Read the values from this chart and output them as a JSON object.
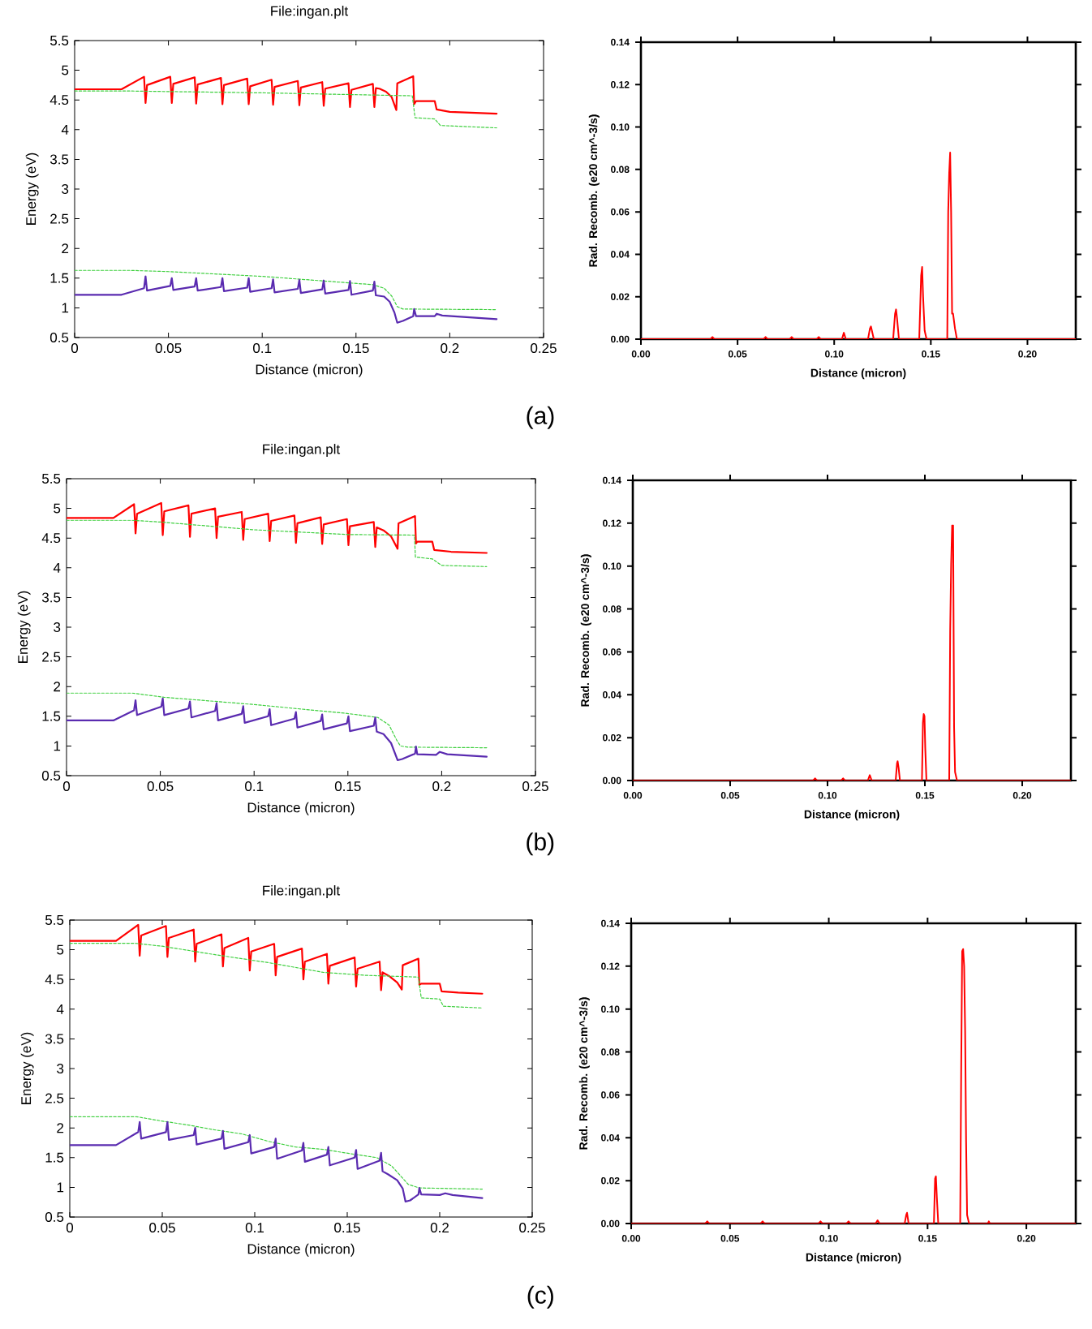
{
  "chart_data": [
    {
      "type": "line",
      "title": "File:ingan.plt",
      "xlabel": "Distance (micron)",
      "ylabel": "Energy (eV)",
      "xlim": [
        0,
        0.25
      ],
      "ylim": [
        0.5,
        5.5
      ],
      "xticks": [
        0,
        0.05,
        0.1,
        0.15,
        0.2,
        0.25
      ],
      "yticks": [
        0.5,
        1,
        1.5,
        2,
        2.5,
        3,
        3.5,
        4,
        4.5,
        5,
        5.5
      ],
      "annotations": [
        "(a)"
      ],
      "series": [
        {
          "color": "#ff0000",
          "x": [
            0,
            0.025,
            0.037,
            0.0378,
            0.0386,
            0.051,
            0.0518,
            0.0526,
            0.064,
            0.0648,
            0.0656,
            0.078,
            0.0788,
            0.0796,
            0.092,
            0.0928,
            0.0936,
            0.105,
            0.1058,
            0.1066,
            0.119,
            0.1198,
            0.1206,
            0.132,
            0.1328,
            0.1336,
            0.146,
            0.1468,
            0.1476,
            0.159,
            0.1598,
            0.1606,
            0.1625,
            0.166,
            0.169,
            0.1715,
            0.172,
            0.1805,
            0.181,
            0.182,
            0.192,
            0.193,
            0.2,
            0.225
          ],
          "values": [
            4.68,
            4.68,
            4.89,
            4.45,
            4.75,
            4.89,
            4.45,
            4.77,
            4.88,
            4.44,
            4.76,
            4.87,
            4.43,
            4.75,
            4.86,
            4.43,
            4.73,
            4.84,
            4.42,
            4.72,
            4.82,
            4.41,
            4.71,
            4.8,
            4.4,
            4.69,
            4.78,
            4.38,
            4.67,
            4.77,
            4.38,
            4.7,
            4.69,
            4.64,
            4.55,
            4.33,
            4.78,
            4.9,
            4.43,
            4.48,
            4.48,
            4.34,
            4.3,
            4.27
          ]
        },
        {
          "color": "#40d040",
          "line_style": "dashed",
          "x": [
            0,
            0.03,
            0.1,
            0.18,
            0.1815,
            0.192,
            0.195,
            0.225
          ],
          "values": [
            4.65,
            4.65,
            4.62,
            4.57,
            4.2,
            4.18,
            4.07,
            4.03
          ]
        },
        {
          "color": "#40d040",
          "line_style": "dashed",
          "x": [
            0,
            0.03,
            0.05,
            0.1,
            0.159,
            0.165,
            0.169,
            0.172,
            0.175,
            0.225
          ],
          "values": [
            1.63,
            1.63,
            1.61,
            1.53,
            1.39,
            1.33,
            1.2,
            1.02,
            0.98,
            0.97
          ]
        },
        {
          "color": "#5a2bb0",
          "x": [
            0,
            0.025,
            0.037,
            0.0378,
            0.0386,
            0.051,
            0.0518,
            0.0526,
            0.064,
            0.0648,
            0.0656,
            0.078,
            0.0788,
            0.0796,
            0.092,
            0.0928,
            0.0936,
            0.105,
            0.1058,
            0.1066,
            0.119,
            0.1198,
            0.1206,
            0.132,
            0.1328,
            0.1336,
            0.146,
            0.1468,
            0.1476,
            0.159,
            0.1598,
            0.1606,
            0.165,
            0.168,
            0.1705,
            0.172,
            0.175,
            0.1805,
            0.181,
            0.182,
            0.192,
            0.193,
            0.196,
            0.225
          ],
          "values": [
            1.22,
            1.22,
            1.33,
            1.53,
            1.29,
            1.37,
            1.5,
            1.3,
            1.36,
            1.5,
            1.29,
            1.35,
            1.5,
            1.28,
            1.34,
            1.5,
            1.27,
            1.33,
            1.48,
            1.26,
            1.32,
            1.47,
            1.25,
            1.31,
            1.46,
            1.24,
            1.3,
            1.45,
            1.22,
            1.29,
            1.44,
            1.21,
            1.19,
            1.1,
            0.92,
            0.75,
            0.78,
            0.86,
            0.98,
            0.86,
            0.86,
            0.9,
            0.87,
            0.81
          ]
        }
      ]
    },
    {
      "type": "line",
      "xlabel": "Distance (micron)",
      "ylabel": "Rad. Recomb. (e20 cm^-3/s)",
      "xlim": [
        0,
        0.225
      ],
      "ylim": [
        0,
        0.14
      ],
      "xticks": [
        {
          "value": 0,
          "label": "0.00"
        },
        {
          "value": 0.05,
          "label": "0.05"
        },
        {
          "value": 0.1,
          "label": "0.10"
        },
        {
          "value": 0.15,
          "label": "0.15"
        },
        {
          "value": 0.2,
          "label": "0.20"
        }
      ],
      "yticks": [
        {
          "value": 0,
          "label": "0.00"
        },
        {
          "value": 0.02,
          "label": "0.02"
        },
        {
          "value": 0.04,
          "label": "0.04"
        },
        {
          "value": 0.06,
          "label": "0.06"
        },
        {
          "value": 0.08,
          "label": "0.08"
        },
        {
          "value": 0.1,
          "label": "0.10"
        },
        {
          "value": 0.12,
          "label": "0.12"
        },
        {
          "value": 0.14,
          "label": "0.14"
        }
      ],
      "series": [
        {
          "color": "#ff0000",
          "x": [
            0,
            0.036,
            0.037,
            0.038,
            0.0635,
            0.0645,
            0.0655,
            0.077,
            0.078,
            0.079,
            0.091,
            0.092,
            0.093,
            0.104,
            0.105,
            0.106,
            0.1175,
            0.1185,
            0.119,
            0.1195,
            0.1205,
            0.1305,
            0.1315,
            0.132,
            0.1325,
            0.1335,
            0.144,
            0.145,
            0.1455,
            0.146,
            0.1468,
            0.1478,
            0.1585,
            0.159,
            0.1595,
            0.16,
            0.1605,
            0.161,
            0.1615,
            0.1625,
            0.1635,
            0.225
          ],
          "values": [
            0,
            0,
            0.001,
            0,
            0,
            0.001,
            0,
            0,
            0.001,
            0,
            0,
            0.001,
            0,
            0,
            0.003,
            0,
            0,
            0.005,
            0.006,
            0.004,
            0,
            0,
            0.012,
            0.014,
            0.01,
            0,
            0,
            0.03,
            0.034,
            0.02,
            0.004,
            0,
            0,
            0.06,
            0.078,
            0.088,
            0.06,
            0.012,
            0.012,
            0.005,
            0,
            0
          ]
        }
      ]
    },
    {
      "type": "line",
      "title": "File:ingan.plt",
      "xlabel": "Distance (micron)",
      "ylabel": "Energy (eV)",
      "xlim": [
        0,
        0.25
      ],
      "ylim": [
        0.5,
        5.5
      ],
      "xticks": [
        0,
        0.05,
        0.1,
        0.15,
        0.2,
        0.25
      ],
      "yticks": [
        0.5,
        1,
        1.5,
        2,
        2.5,
        3,
        3.5,
        4,
        4.5,
        5,
        5.5
      ],
      "annotations": [
        "(b)"
      ],
      "series": [
        {
          "color": "#ff0000",
          "x": [
            0,
            0.025,
            0.036,
            0.0368,
            0.0376,
            0.0505,
            0.0513,
            0.0521,
            0.065,
            0.0658,
            0.0666,
            0.0792,
            0.08,
            0.0808,
            0.0934,
            0.0942,
            0.095,
            0.1075,
            0.1083,
            0.1091,
            0.1215,
            0.1223,
            0.1231,
            0.1355,
            0.1363,
            0.1371,
            0.1495,
            0.1503,
            0.1511,
            0.1638,
            0.1646,
            0.1654,
            0.169,
            0.173,
            0.1765,
            0.177,
            0.1858,
            0.1863,
            0.187,
            0.195,
            0.196,
            0.205,
            0.224
          ],
          "values": [
            4.84,
            4.84,
            5.07,
            4.58,
            4.91,
            5.09,
            4.55,
            4.95,
            5.05,
            4.52,
            4.91,
            5.0,
            4.5,
            4.86,
            4.94,
            4.47,
            4.82,
            4.91,
            4.45,
            4.79,
            4.88,
            4.42,
            4.75,
            4.85,
            4.4,
            4.73,
            4.82,
            4.38,
            4.7,
            4.77,
            4.35,
            4.68,
            4.63,
            4.53,
            4.32,
            4.75,
            4.87,
            4.41,
            4.44,
            4.44,
            4.3,
            4.27,
            4.25
          ]
        },
        {
          "color": "#40d040",
          "line_style": "dashed",
          "x": [
            0,
            0.035,
            0.05,
            0.1,
            0.15,
            0.1855,
            0.186,
            0.195,
            0.2,
            0.224
          ],
          "values": [
            4.8,
            4.8,
            4.77,
            4.64,
            4.56,
            4.55,
            4.18,
            4.15,
            4.04,
            4.02
          ]
        },
        {
          "color": "#40d040",
          "line_style": "dashed",
          "x": [
            0,
            0.035,
            0.052,
            0.099,
            0.149,
            0.166,
            0.172,
            0.176,
            0.178,
            0.182,
            0.224
          ],
          "values": [
            1.89,
            1.89,
            1.82,
            1.7,
            1.55,
            1.48,
            1.35,
            1.1,
            1.0,
            0.98,
            0.97
          ]
        },
        {
          "color": "#5a2bb0",
          "x": [
            0,
            0.025,
            0.036,
            0.0368,
            0.0376,
            0.0505,
            0.0513,
            0.0521,
            0.065,
            0.0658,
            0.0666,
            0.0792,
            0.08,
            0.0808,
            0.0934,
            0.0942,
            0.095,
            0.1075,
            0.1083,
            0.1091,
            0.1215,
            0.1223,
            0.1231,
            0.1355,
            0.1363,
            0.1371,
            0.1495,
            0.1503,
            0.1511,
            0.1638,
            0.1646,
            0.1654,
            0.169,
            0.173,
            0.1765,
            0.179,
            0.1858,
            0.1863,
            0.187,
            0.197,
            0.199,
            0.203,
            0.224
          ],
          "values": [
            1.43,
            1.43,
            1.6,
            1.77,
            1.52,
            1.66,
            1.8,
            1.52,
            1.63,
            1.75,
            1.48,
            1.59,
            1.72,
            1.43,
            1.54,
            1.67,
            1.39,
            1.5,
            1.62,
            1.35,
            1.46,
            1.57,
            1.31,
            1.42,
            1.53,
            1.28,
            1.38,
            1.5,
            1.25,
            1.34,
            1.48,
            1.24,
            1.2,
            1.05,
            0.76,
            0.78,
            0.87,
            0.99,
            0.86,
            0.85,
            0.9,
            0.86,
            0.82
          ]
        }
      ]
    },
    {
      "type": "line",
      "xlabel": "Distance (micron)",
      "ylabel": "Rad. Recomb. (e20 cm^-3/s)",
      "xlim": [
        0,
        0.225
      ],
      "ylim": [
        0,
        0.14
      ],
      "xticks": [
        {
          "value": 0,
          "label": "0.00"
        },
        {
          "value": 0.05,
          "label": "0.05"
        },
        {
          "value": 0.1,
          "label": "0.10"
        },
        {
          "value": 0.15,
          "label": "0.15"
        },
        {
          "value": 0.2,
          "label": "0.20"
        }
      ],
      "yticks": [
        {
          "value": 0,
          "label": "0.00"
        },
        {
          "value": 0.02,
          "label": "0.02"
        },
        {
          "value": 0.04,
          "label": "0.04"
        },
        {
          "value": 0.06,
          "label": "0.06"
        },
        {
          "value": 0.08,
          "label": "0.08"
        },
        {
          "value": 0.1,
          "label": "0.10"
        },
        {
          "value": 0.12,
          "label": "0.12"
        },
        {
          "value": 0.14,
          "label": "0.14"
        }
      ],
      "series": [
        {
          "color": "#ff0000",
          "x": [
            0,
            0.0926,
            0.0936,
            0.0946,
            0.107,
            0.108,
            0.109,
            0.1207,
            0.1217,
            0.1227,
            0.135,
            0.1357,
            0.136,
            0.1365,
            0.1372,
            0.1485,
            0.149,
            0.1494,
            0.1498,
            0.1502,
            0.1508,
            0.1625,
            0.163,
            0.1635,
            0.164,
            0.1645,
            0.165,
            0.1655,
            0.1665,
            0.225
          ],
          "values": [
            0,
            0,
            0.001,
            0,
            0,
            0.001,
            0,
            0,
            0.0025,
            0,
            0,
            0.008,
            0.009,
            0.006,
            0,
            0,
            0.027,
            0.031,
            0.03,
            0.015,
            0,
            0,
            0.07,
            0.101,
            0.119,
            0.119,
            0.025,
            0.004,
            0,
            0
          ]
        }
      ]
    },
    {
      "type": "line",
      "title": "File:ingan.plt",
      "xlabel": "Distance (micron)",
      "ylabel": "Energy (eV)",
      "xlim": [
        0,
        0.25
      ],
      "ylim": [
        0.5,
        5.5
      ],
      "xticks": [
        0,
        0.05,
        0.1,
        0.15,
        0.2,
        0.25
      ],
      "yticks": [
        0.5,
        1,
        1.5,
        2,
        2.5,
        3,
        3.5,
        4,
        4.5,
        5,
        5.5
      ],
      "annotations": [
        "(c)"
      ],
      "series": [
        {
          "color": "#ff0000",
          "x": [
            0,
            0.025,
            0.037,
            0.0378,
            0.0386,
            0.052,
            0.0528,
            0.0536,
            0.067,
            0.0678,
            0.0686,
            0.082,
            0.0828,
            0.0836,
            0.0965,
            0.0973,
            0.0981,
            0.1105,
            0.1113,
            0.1121,
            0.1255,
            0.1263,
            0.1271,
            0.139,
            0.1398,
            0.1406,
            0.154,
            0.1548,
            0.1556,
            0.1675,
            0.1683,
            0.1691,
            0.173,
            0.177,
            0.1795,
            0.18,
            0.1885,
            0.189,
            0.19,
            0.2,
            0.201,
            0.21,
            0.223
          ],
          "values": [
            5.15,
            5.15,
            5.42,
            4.9,
            5.24,
            5.4,
            4.88,
            5.2,
            5.34,
            4.8,
            5.1,
            5.26,
            4.72,
            5.03,
            5.2,
            4.65,
            4.97,
            5.1,
            4.57,
            4.88,
            5.02,
            4.5,
            4.8,
            4.93,
            4.43,
            4.73,
            4.87,
            4.38,
            4.68,
            4.8,
            4.32,
            4.62,
            4.55,
            4.45,
            4.33,
            4.74,
            4.85,
            4.41,
            4.43,
            4.43,
            4.3,
            4.28,
            4.26
          ]
        },
        {
          "color": "#40d040",
          "line_style": "dashed",
          "x": [
            0,
            0.035,
            0.05,
            0.078,
            0.108,
            0.137,
            0.16,
            0.1885,
            0.19,
            0.2,
            0.202,
            0.223
          ],
          "values": [
            5.11,
            5.11,
            5.06,
            4.92,
            4.78,
            4.62,
            4.57,
            4.54,
            4.19,
            4.17,
            4.05,
            4.02
          ]
        },
        {
          "color": "#40d040",
          "line_style": "dashed",
          "x": [
            0,
            0.036,
            0.049,
            0.064,
            0.078,
            0.093,
            0.108,
            0.122,
            0.137,
            0.151,
            0.166,
            0.174,
            0.183,
            0.189,
            0.223
          ],
          "values": [
            2.19,
            2.19,
            2.12,
            2.05,
            1.97,
            1.9,
            1.77,
            1.68,
            1.64,
            1.57,
            1.5,
            1.36,
            1.05,
            0.99,
            0.97
          ]
        },
        {
          "color": "#5a2bb0",
          "x": [
            0,
            0.025,
            0.037,
            0.0378,
            0.0386,
            0.052,
            0.0528,
            0.0536,
            0.067,
            0.0678,
            0.0686,
            0.082,
            0.0828,
            0.0836,
            0.0965,
            0.0973,
            0.0981,
            0.1105,
            0.1113,
            0.1121,
            0.1255,
            0.1263,
            0.1271,
            0.139,
            0.1398,
            0.1406,
            0.154,
            0.1548,
            0.1556,
            0.1675,
            0.1683,
            0.1691,
            0.172,
            0.177,
            0.18,
            0.1815,
            0.184,
            0.1885,
            0.189,
            0.19,
            0.2,
            0.203,
            0.207,
            0.223
          ],
          "values": [
            1.71,
            1.71,
            1.93,
            2.1,
            1.82,
            1.93,
            2.1,
            1.8,
            1.88,
            2.0,
            1.72,
            1.82,
            1.95,
            1.65,
            1.76,
            1.88,
            1.57,
            1.68,
            1.82,
            1.48,
            1.62,
            1.75,
            1.43,
            1.55,
            1.68,
            1.37,
            1.5,
            1.63,
            1.31,
            1.45,
            1.58,
            1.27,
            1.22,
            1.12,
            0.98,
            0.76,
            0.78,
            0.88,
            0.99,
            0.88,
            0.87,
            0.9,
            0.87,
            0.82
          ]
        }
      ]
    },
    {
      "type": "line",
      "xlabel": "Distance (micron)",
      "ylabel": "Rad. Recomb. (e20 cm^-3/s)",
      "xlim": [
        0,
        0.225
      ],
      "ylim": [
        0,
        0.14
      ],
      "xticks": [
        {
          "value": 0,
          "label": "0.00"
        },
        {
          "value": 0.05,
          "label": "0.05"
        },
        {
          "value": 0.1,
          "label": "0.10"
        },
        {
          "value": 0.15,
          "label": "0.15"
        },
        {
          "value": 0.2,
          "label": "0.20"
        }
      ],
      "yticks": [
        {
          "value": 0,
          "label": "0.00"
        },
        {
          "value": 0.02,
          "label": "0.02"
        },
        {
          "value": 0.04,
          "label": "0.04"
        },
        {
          "value": 0.06,
          "label": "0.06"
        },
        {
          "value": 0.08,
          "label": "0.08"
        },
        {
          "value": 0.1,
          "label": "0.10"
        },
        {
          "value": 0.12,
          "label": "0.12"
        },
        {
          "value": 0.14,
          "label": "0.14"
        }
      ],
      "series": [
        {
          "color": "#ff0000",
          "x": [
            0,
            0.0375,
            0.0385,
            0.0395,
            0.0655,
            0.0665,
            0.0675,
            0.0948,
            0.0958,
            0.0968,
            0.109,
            0.11,
            0.111,
            0.1237,
            0.1247,
            0.1257,
            0.1384,
            0.1392,
            0.1396,
            0.1404,
            0.1532,
            0.1538,
            0.1542,
            0.1547,
            0.1554,
            0.1665,
            0.167,
            0.1675,
            0.168,
            0.1685,
            0.169,
            0.1695,
            0.17,
            0.171,
            0.1805,
            0.181,
            0.1815,
            0.225
          ],
          "values": [
            0,
            0,
            0.001,
            0,
            0,
            0.001,
            0,
            0,
            0.001,
            0,
            0,
            0.001,
            0,
            0,
            0.0015,
            0,
            0,
            0.004,
            0.005,
            0,
            0,
            0.021,
            0.022,
            0.012,
            0,
            0,
            0.07,
            0.127,
            0.128,
            0.12,
            0.09,
            0.038,
            0.004,
            0,
            0,
            0.001,
            0,
            0
          ]
        }
      ]
    }
  ]
}
